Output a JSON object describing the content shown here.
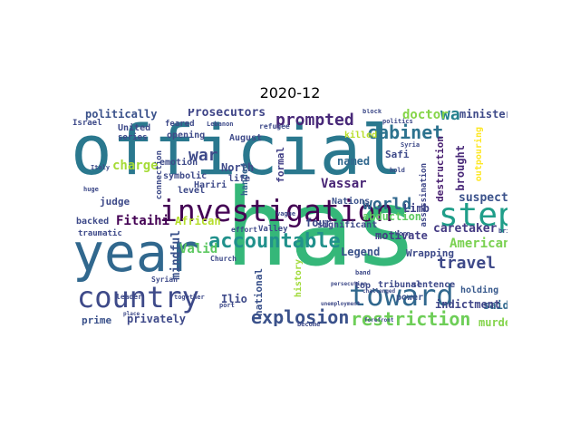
{
  "title": "2020-12",
  "words": [
    {
      "text": "official",
      "color": "#2a788e"
    },
    {
      "text": "has",
      "color": "#35b779"
    },
    {
      "text": "year",
      "color": "#31688e"
    },
    {
      "text": "investigation",
      "color": "#440154"
    },
    {
      "text": "step",
      "color": "#1f9e89"
    },
    {
      "text": "country",
      "color": "#3e4a89"
    },
    {
      "text": "toward",
      "color": "#31688e"
    },
    {
      "text": "accountable",
      "color": "#21918c"
    },
    {
      "text": "explosion",
      "color": "#3b528b"
    },
    {
      "text": "restriction",
      "color": "#6ece58"
    },
    {
      "text": "prompted",
      "color": "#482878"
    },
    {
      "text": "cabinet",
      "color": "#2c728e"
    },
    {
      "text": "travel",
      "color": "#3e4989"
    },
    {
      "text": "world",
      "color": "#31688e"
    },
    {
      "text": "wa",
      "color": "#26828e"
    },
    {
      "text": "war",
      "color": "#3e4a89"
    },
    {
      "text": "doctor",
      "color": "#86d549"
    },
    {
      "text": "Vassar",
      "color": "#482475"
    },
    {
      "text": "politically",
      "color": "#3b528b"
    },
    {
      "text": "Prosecutors",
      "color": "#404688"
    },
    {
      "text": "minister",
      "color": "#3e4a89"
    },
    {
      "text": "charge",
      "color": "#a5db36"
    },
    {
      "text": "Fitaihi",
      "color": "#440154"
    },
    {
      "text": "African",
      "color": "#b5de2b"
    },
    {
      "text": "Valid",
      "color": "#5ec962"
    },
    {
      "text": "American",
      "color": "#7ad151"
    },
    {
      "text": "caretaker",
      "color": "#443a83"
    },
    {
      "text": "privately",
      "color": "#3e4989"
    },
    {
      "text": "prime",
      "color": "#3b528b"
    },
    {
      "text": "said",
      "color": "#31688e"
    },
    {
      "text": "murder",
      "color": "#84d44b"
    },
    {
      "text": "indictment",
      "color": "#404688"
    },
    {
      "text": "holding",
      "color": "#38598c"
    },
    {
      "text": "Legend",
      "color": "#3b528b"
    },
    {
      "text": "motivate",
      "color": "#433e85"
    },
    {
      "text": "abduction",
      "color": "#5ec962"
    },
    {
      "text": "suspect",
      "color": "#3b528b"
    },
    {
      "text": "four",
      "color": "#3e4a89"
    },
    {
      "text": "Limb",
      "color": "#414487"
    },
    {
      "text": "named",
      "color": "#31688e"
    },
    {
      "text": "Nations",
      "color": "#3b528b"
    },
    {
      "text": "North",
      "color": "#3e4989"
    },
    {
      "text": "judge",
      "color": "#3e4a89"
    },
    {
      "text": "brought",
      "color": "#482878"
    },
    {
      "text": "destruction",
      "color": "#481f70"
    },
    {
      "text": "assassination",
      "color": "#3f4788"
    },
    {
      "text": "outpouring",
      "color": "#fde725"
    },
    {
      "text": "mindful",
      "color": "#3b528b"
    },
    {
      "text": "handed",
      "color": "#33638d"
    },
    {
      "text": "formal",
      "color": "#424086"
    },
    {
      "text": "Safi",
      "color": "#3e4a89"
    },
    {
      "text": "killed",
      "color": "#b8de29"
    },
    {
      "text": "Ilio",
      "color": "#3e4a89"
    },
    {
      "text": "national",
      "color": "#3b528b"
    },
    {
      "text": "history",
      "color": "#a0da39"
    },
    {
      "text": "Wrapping",
      "color": "#3e4a89"
    },
    {
      "text": "significant",
      "color": "#3e4a89"
    },
    {
      "text": "sentence",
      "color": "#3e4a89"
    },
    {
      "text": "power",
      "color": "#3b528b"
    },
    {
      "text": "top",
      "color": "#3e4a89"
    },
    {
      "text": "tribunal",
      "color": "#3e4989"
    },
    {
      "text": "backed",
      "color": "#3e4a89"
    },
    {
      "text": "traumatic",
      "color": "#3e4a89"
    },
    {
      "text": "symbolic",
      "color": "#3e4a89"
    },
    {
      "text": "emotion",
      "color": "#3e4a89"
    },
    {
      "text": "opening",
      "color": "#3e4a89"
    },
    {
      "text": "August",
      "color": "#3e4a89"
    },
    {
      "text": "Hariri",
      "color": "#3e4a89"
    },
    {
      "text": "life",
      "color": "#3e4a89"
    },
    {
      "text": "level",
      "color": "#3e4a89"
    },
    {
      "text": "United",
      "color": "#3e4a89"
    },
    {
      "text": "series",
      "color": "#3e4a89"
    },
    {
      "text": "Israel",
      "color": "#3e4a89"
    },
    {
      "text": "feared",
      "color": "#3e4a89"
    },
    {
      "text": "refugee",
      "color": "#3e4a89"
    },
    {
      "text": "Valley",
      "color": "#3e4a89"
    },
    {
      "text": "effort",
      "color": "#3e4a89"
    },
    {
      "text": "Church",
      "color": "#3e4a89"
    },
    {
      "text": "Syrian",
      "color": "#3e4a89"
    },
    {
      "text": "connection",
      "color": "#3e4a89"
    },
    {
      "text": "leader",
      "color": "#3e4a89"
    },
    {
      "text": "together",
      "color": "#3e4a89"
    },
    {
      "text": "become",
      "color": "#3e4a89"
    },
    {
      "text": "band",
      "color": "#3e4a89"
    },
    {
      "text": "challenged",
      "color": "#3e4a89"
    },
    {
      "text": "Lebanon",
      "color": "#3e4a89"
    },
    {
      "text": "Italy",
      "color": "#3e4a89"
    },
    {
      "text": "huge",
      "color": "#3e4a89"
    },
    {
      "text": "politics",
      "color": "#3e4a89"
    },
    {
      "text": "Syria",
      "color": "#3e4a89"
    },
    {
      "text": "vague",
      "color": "#3e4a89"
    },
    {
      "text": "hold",
      "color": "#3e4a89"
    },
    {
      "text": "Worn",
      "color": "#3e4a89"
    },
    {
      "text": "block",
      "color": "#3e4a89"
    },
    {
      "text": "bring",
      "color": "#3e4a89"
    },
    {
      "text": "port",
      "color": "#3e4a89"
    },
    {
      "text": "forefront",
      "color": "#3e4a89"
    },
    {
      "text": "persecution",
      "color": "#3e4a89"
    },
    {
      "text": "place",
      "color": "#3e4a89"
    },
    {
      "text": "unemployment",
      "color": "#3e4a89"
    }
  ]
}
